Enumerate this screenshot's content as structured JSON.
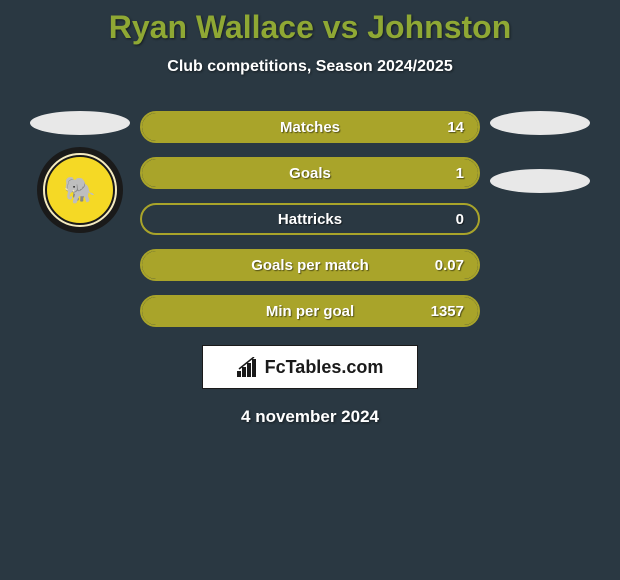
{
  "title": "Ryan Wallace vs Johnston",
  "title_color": "#8fa834",
  "subtitle": "Club competitions, Season 2024/2025",
  "background_color": "#2a3842",
  "accent_color": "#a9a42a",
  "avatar_bg": "#e8e8e8",
  "stat_text_color": "#ffffff",
  "stats": [
    {
      "label": "Matches",
      "value": "14",
      "fill_pct": 100
    },
    {
      "label": "Goals",
      "value": "1",
      "fill_pct": 100
    },
    {
      "label": "Hattricks",
      "value": "0",
      "fill_pct": 0
    },
    {
      "label": "Goals per match",
      "value": "0.07",
      "fill_pct": 100
    },
    {
      "label": "Min per goal",
      "value": "1357",
      "fill_pct": 100
    }
  ],
  "left_player": {
    "has_club": true,
    "club_name": "Dumbarton F.C.",
    "club_emoji": "🐘"
  },
  "right_player": {
    "has_club": false
  },
  "brand": "FcTables.com",
  "date": "4 november 2024"
}
